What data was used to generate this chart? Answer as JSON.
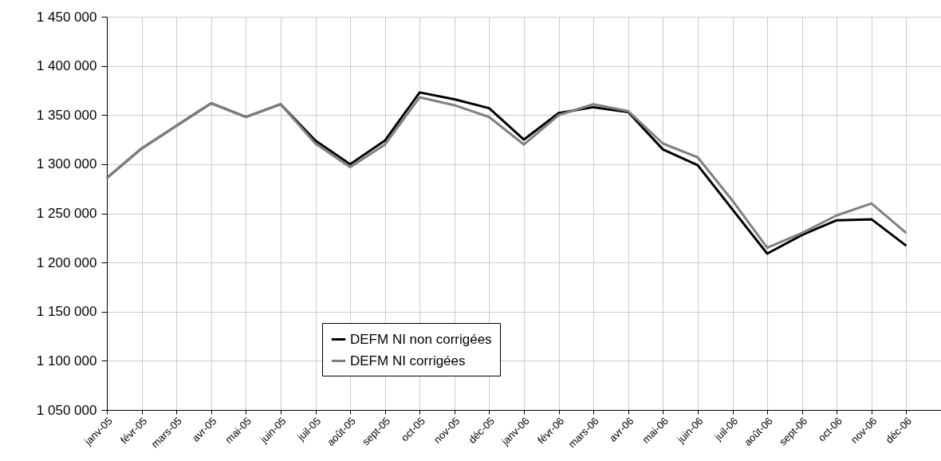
{
  "chart_data": {
    "type": "line",
    "categories": [
      "janv-05",
      "févr-05",
      "mars-05",
      "avr-05",
      "mai-05",
      "juin-05",
      "juil-05",
      "août-05",
      "sept-05",
      "oct-05",
      "nov-05",
      "déc-05",
      "janv-06",
      "févr-06",
      "mars-06",
      "avr-06",
      "mai-06",
      "juin-06",
      "juil-06",
      "août-06",
      "sept-06",
      "oct-06",
      "nov-06",
      "déc-06"
    ],
    "series": [
      {
        "name": "DEFM NI non corrigées",
        "color": "#000000",
        "values": [
          1286000,
          1316000,
          1339000,
          1362000,
          1348000,
          1361000,
          1324000,
          1300000,
          1324000,
          1373000,
          1366000,
          1357000,
          1325000,
          1352000,
          1358000,
          1353000,
          1315000,
          1299000,
          1254000,
          1209000,
          1228000,
          1243000,
          1244000,
          1217000
        ]
      },
      {
        "name": "DEFM NI corrigées",
        "color": "#808080",
        "values": [
          1286000,
          1316000,
          1339000,
          1362000,
          1348000,
          1361000,
          1321000,
          1297000,
          1320000,
          1368000,
          1360000,
          1348000,
          1320000,
          1350000,
          1361000,
          1354000,
          1321000,
          1307000,
          1263000,
          1215000,
          1230000,
          1248000,
          1260000,
          1230000
        ]
      }
    ],
    "ylim": [
      1050000,
      1450000
    ],
    "yticks": [
      {
        "value": 1050000,
        "label": "1 050 000"
      },
      {
        "value": 1100000,
        "label": "1 100 000"
      },
      {
        "value": 1150000,
        "label": "1 150 000"
      },
      {
        "value": 1200000,
        "label": "1 200 000"
      },
      {
        "value": 1250000,
        "label": "1 250 000"
      },
      {
        "value": 1300000,
        "label": "1 300 000"
      },
      {
        "value": 1350000,
        "label": "1 350 000"
      },
      {
        "value": 1400000,
        "label": "1 400 000"
      },
      {
        "value": 1450000,
        "label": "1 450 000"
      }
    ],
    "grid": true,
    "legend": "bottom",
    "marker": "none",
    "line_style": "solid"
  }
}
